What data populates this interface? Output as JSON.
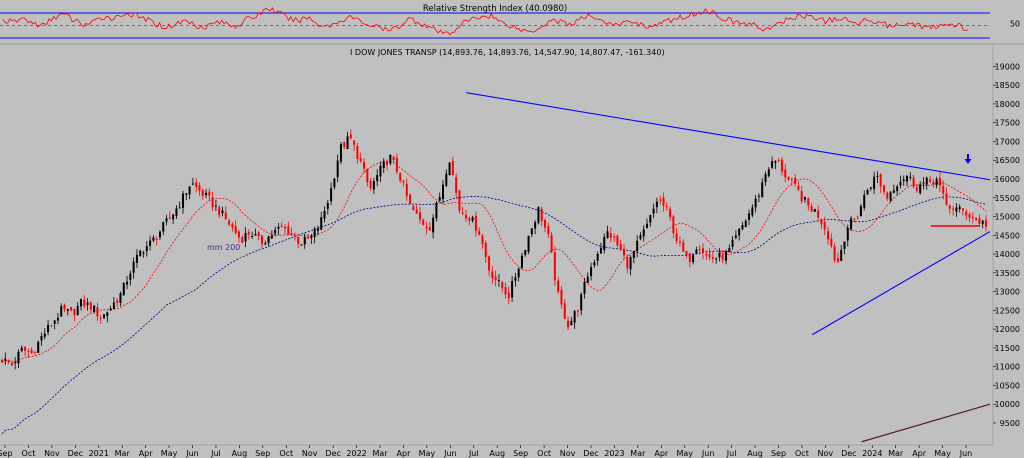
{
  "colors": {
    "background": "#c0c0c0",
    "candle_up": "#000000",
    "candle_down": "#ff0000",
    "ma_short": "#ff0000",
    "ma_long": "#00008b",
    "trendline": "#0000ff",
    "rsi_line": "#ff0000",
    "rsi_bands": "#0000ff",
    "support_line": "#ff0000",
    "arrow": "#0000ff",
    "dark_line": "#5a1a1a"
  },
  "chart_data": [
    {
      "type": "line",
      "title": "Relative Strength Index (40.0980)",
      "ylim": [
        20,
        80
      ],
      "bands": [
        30,
        70
      ],
      "y_tick_labels": [
        "50"
      ],
      "values": [
        55,
        52,
        58,
        50,
        46,
        60,
        64,
        55,
        48,
        52,
        61,
        58,
        66,
        62,
        57,
        50,
        44,
        49,
        55,
        47,
        45,
        53,
        50,
        46,
        56,
        62,
        74,
        68,
        58,
        54,
        60,
        49,
        46,
        52,
        61,
        55,
        48,
        44,
        38,
        46,
        58,
        51,
        44,
        36,
        34,
        48,
        56,
        60,
        63,
        52,
        47,
        40,
        38,
        46,
        56,
        52,
        49,
        58,
        62,
        55,
        46,
        50,
        54,
        47,
        45,
        52,
        56,
        61,
        64,
        70,
        66,
        58,
        52,
        50,
        47,
        41,
        45,
        55,
        60,
        62,
        59,
        53,
        58,
        55,
        50,
        56,
        54,
        48,
        46,
        52,
        48,
        44,
        43,
        50,
        47,
        40
      ],
      "grid": false
    },
    {
      "type": "line",
      "title": "I DOW JONES TRANSP (14,893.76, 14,893.76, 14,547.90, 14,807.47, -161.340)",
      "x_tick_labels": [
        "Sep",
        "Oct",
        "Nov",
        "Dec",
        "2021",
        "Mar",
        "Apr",
        "May",
        "Jun",
        "Jul",
        "Aug",
        "Sep",
        "Oct",
        "Nov",
        "Dec",
        "2022",
        "Mar",
        "Apr",
        "May",
        "Jun",
        "Jul",
        "Aug",
        "Sep",
        "Oct",
        "Nov",
        "Dec",
        "2023",
        "Mar",
        "Apr",
        "May",
        "Jun",
        "Jul",
        "Aug",
        "Sep",
        "Oct",
        "Nov",
        "Dec",
        "2024",
        "Mar",
        "Apr",
        "May",
        "Jun"
      ],
      "y_tick_labels": [
        "9500",
        "10000",
        "10500",
        "11000",
        "11500",
        "12000",
        "12500",
        "13000",
        "13500",
        "14000",
        "14500",
        "15000",
        "15500",
        "16000",
        "16500",
        "17000",
        "17500",
        "18000",
        "18500",
        "19000"
      ],
      "ylim": [
        9100,
        19250
      ],
      "series": [
        {
          "kind": "price",
          "values": [
            11200,
            11050,
            11450,
            11350,
            11800,
            12150,
            12500,
            12400,
            12700,
            12600,
            12300,
            12600,
            12950,
            13600,
            14100,
            14300,
            14650,
            15000,
            15400,
            15900,
            15650,
            15400,
            15100,
            14750,
            14400,
            14600,
            14300,
            14500,
            14700,
            14600,
            14300,
            14400,
            14800,
            15600,
            16800,
            17100,
            16500,
            15700,
            16200,
            16600,
            16100,
            15300,
            14900,
            14700,
            15500,
            16600,
            15200,
            15000,
            14600,
            13600,
            13200,
            12900,
            13700,
            14500,
            15200,
            14400,
            12800,
            12100,
            12600,
            13500,
            14100,
            14600,
            14200,
            13700,
            14300,
            14800,
            15500,
            15100,
            14300,
            13800,
            14300,
            13900,
            13900,
            14000,
            14500,
            15000,
            15500,
            16300,
            16500,
            16000,
            15700,
            15300,
            15100,
            14600,
            13700,
            14700,
            15000,
            15700,
            16100,
            15500,
            15900,
            16100,
            15800,
            15900,
            16000,
            15300,
            15200,
            15100,
            14900,
            14800
          ]
        },
        {
          "kind": "ma-short",
          "values": []
        },
        {
          "kind": "ma-long",
          "name": "mm 200",
          "values": []
        }
      ],
      "trendlines": [
        {
          "from": [
            47,
            18300
          ],
          "to": [
            100,
            15980
          ]
        },
        {
          "from": [
            82,
            11850
          ],
          "to": [
            100,
            14600
          ]
        },
        {
          "from": [
            94,
            14750
          ],
          "to": [
            99,
            14750
          ]
        },
        {
          "from": [
            87,
            9000
          ],
          "to": [
            100,
            10000
          ]
        }
      ],
      "grid": false
    }
  ]
}
